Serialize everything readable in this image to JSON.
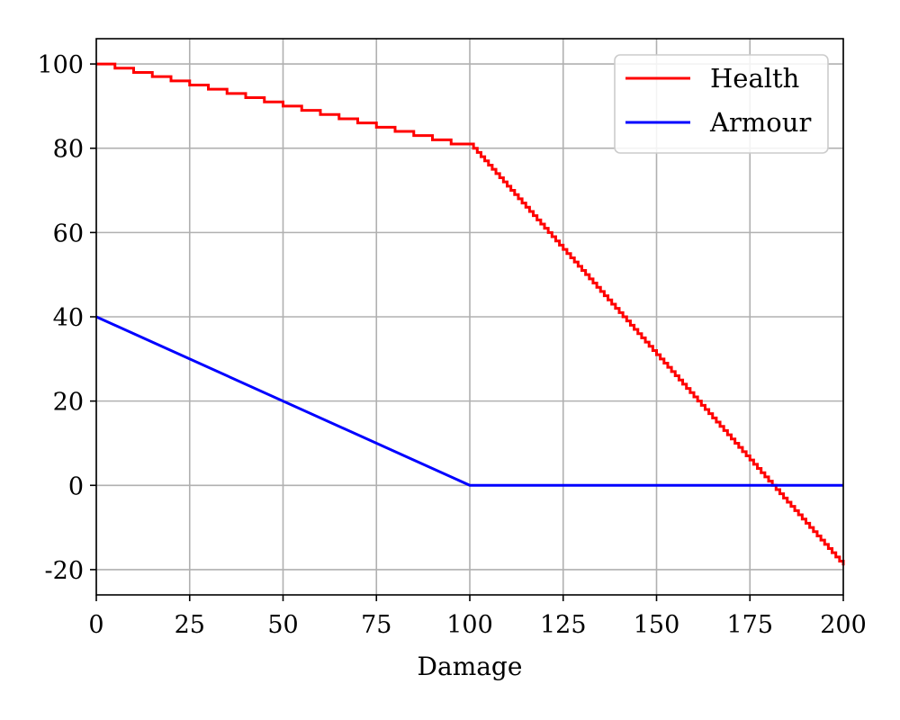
{
  "chart_data": {
    "type": "line",
    "xlabel": "Damage",
    "ylabel": "",
    "xlim": [
      0,
      200
    ],
    "ylim": [
      -26,
      106
    ],
    "grid": true,
    "legend_position": "top-right",
    "x_ticks": [
      0,
      25,
      50,
      75,
      100,
      125,
      150,
      175,
      200
    ],
    "y_ticks": [
      -20,
      0,
      20,
      40,
      60,
      80,
      100
    ],
    "x_tick_labels": [
      "0",
      "25",
      "50",
      "75",
      "100",
      "125",
      "150",
      "175",
      "200"
    ],
    "y_tick_labels": [
      "-20",
      "0",
      "20",
      "40",
      "60",
      "80",
      "100"
    ],
    "series": [
      {
        "name": "Health",
        "color": "#ff0000",
        "step": true,
        "x": [
          0,
          5,
          10,
          15,
          20,
          25,
          30,
          35,
          40,
          45,
          50,
          55,
          60,
          65,
          70,
          75,
          80,
          85,
          90,
          95,
          100,
          200
        ],
        "y": [
          100,
          99,
          98,
          97,
          96,
          95,
          94,
          93,
          92,
          91,
          90,
          89,
          88,
          87,
          86,
          85,
          84,
          83,
          82,
          81,
          81,
          -19
        ]
      },
      {
        "name": "Armour",
        "color": "#0000ff",
        "step": false,
        "x": [
          0,
          100,
          200
        ],
        "y": [
          40,
          0,
          0
        ]
      }
    ]
  }
}
